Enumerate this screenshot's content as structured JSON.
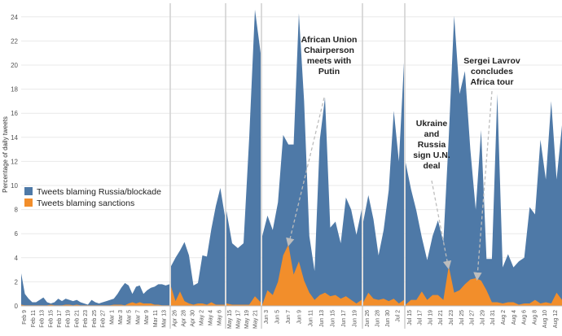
{
  "chart_data": {
    "type": "area",
    "ylabel": "Percentage of daily tweets",
    "ylim": [
      0,
      25
    ],
    "y_ticks": [
      0,
      2,
      4,
      6,
      8,
      10,
      12,
      14,
      16,
      18,
      20,
      22,
      24
    ],
    "grid": true,
    "legend_placement": "left-middle",
    "colors": {
      "blue": "#4e79a7",
      "orange": "#f28e2b",
      "divider": "#cfcfcf",
      "grid": "#e9e9e9",
      "annotation_arrow": "#bdbdbd"
    },
    "series": [
      {
        "name": "Tweets blaming Russia/blockade",
        "color": "#4e79a7"
      },
      {
        "name": "Tweets blaming sanctions",
        "color": "#f28e2b"
      }
    ],
    "panels": [
      {
        "ticks": [
          "Feb 9",
          "Feb 11",
          "Feb 13",
          "Feb 15",
          "Feb 17",
          "Feb 19",
          "Feb 21",
          "Feb 23",
          "Feb 25",
          "Feb 27",
          "Mar 1",
          "Mar 3",
          "Mar 5",
          "Mar 7",
          "Mar 9",
          "Mar 11",
          "Mar 13"
        ],
        "blue": [
          2.7,
          1.0,
          0.6,
          0.3,
          0.3,
          0.5,
          0.7,
          0.3,
          0.2,
          0.3,
          0.6,
          0.4,
          0.6,
          0.5,
          0.4,
          0.5,
          0.3,
          0.2,
          0.1,
          0.5,
          0.3,
          0.2,
          0.3,
          0.4,
          0.5,
          0.6,
          1.0,
          1.5,
          1.9,
          1.7,
          1.0,
          1.6,
          1.7,
          1.0,
          1.3,
          1.5,
          1.6,
          1.8,
          1.8,
          1.7,
          1.8
        ],
        "orange": [
          0.1,
          0.05,
          0.05,
          0.05,
          0.05,
          0.05,
          0.05,
          0.05,
          0.1,
          0.05,
          0.05,
          0.05,
          0.1,
          0.1,
          0.05,
          0.1,
          0.05,
          0.05,
          0.05,
          0.05,
          0.05,
          0.05,
          0.05,
          0.05,
          0.05,
          0.1,
          0.1,
          0.1,
          0.05,
          0.2,
          0.3,
          0.2,
          0.3,
          0.2,
          0.2,
          0.2,
          0.1,
          0.1,
          0.05,
          0.05,
          0.05
        ]
      },
      {
        "ticks": [
          "Apr 26",
          "Apr 28",
          "Apr 30",
          "May 2",
          "May 4",
          "May 6"
        ],
        "blue": [
          3.3,
          4.0,
          4.6,
          5.3,
          4.2,
          1.7,
          1.9,
          4.2,
          4.1,
          6.4,
          8.3,
          9.8,
          7.5
        ],
        "orange": [
          1.6,
          0.4,
          1.2,
          0.4,
          0.2,
          0.1,
          0.2,
          0.2,
          0.1,
          0.3,
          0.1,
          0.1,
          0.1
        ]
      },
      {
        "ticks": [
          "May 15",
          "May 17",
          "May 19",
          "May 21"
        ],
        "blue": [
          7.9,
          5.2,
          4.8,
          5.2,
          14.0,
          24.6,
          21.0
        ],
        "orange": [
          0.2,
          0.1,
          0.1,
          0.1,
          0.1,
          0.8,
          0.3
        ]
      },
      {
        "ticks": [
          "Jun 3",
          "Jun 5",
          "Jun 7",
          "Jun 9",
          "Jun 11",
          "Jun 13",
          "Jun 15",
          "Jun 17",
          "Jun 19"
        ],
        "blue": [
          5.8,
          7.5,
          6.3,
          8.6,
          14.2,
          13.4,
          13.4,
          24.3,
          17.0,
          5.8,
          2.9,
          13.8,
          17.3,
          6.5,
          7.0,
          5.2,
          9.0,
          8.0,
          5.9,
          8.0
        ],
        "orange": [
          0.1,
          1.3,
          0.9,
          2.0,
          4.2,
          5.1,
          2.6,
          3.7,
          2.1,
          1.1,
          0.5,
          0.9,
          1.1,
          0.8,
          0.9,
          0.6,
          0.8,
          0.5,
          0.2,
          0.5
        ]
      },
      {
        "ticks": [
          "Jun 26",
          "Jun 28",
          "Jun 30",
          "Jul 2"
        ],
        "blue": [
          7.0,
          9.2,
          7.2,
          4.2,
          6.3,
          9.6,
          16.2,
          12.0,
          20.2
        ],
        "orange": [
          0.3,
          1.1,
          0.6,
          0.5,
          0.6,
          0.4,
          0.6,
          0.2,
          0.5
        ]
      },
      {
        "ticks": [
          "Jul 15",
          "Jul 17",
          "Jul 19",
          "Jul 21",
          "Jul 23",
          "Jul 25",
          "Jul 27",
          "Jul 29",
          "Jul 31",
          "Aug 2",
          "Aug 4",
          "Aug 6",
          "Aug 8",
          "Aug 10",
          "Aug 12"
        ],
        "blue": [
          11.9,
          9.7,
          7.9,
          5.7,
          3.8,
          5.8,
          7.1,
          5.3,
          14.0,
          24.1,
          17.6,
          19.5,
          13.0,
          8.0,
          14.6,
          3.9,
          3.9,
          17.6,
          3.2,
          4.3,
          3.2,
          3.7,
          4.0,
          8.2,
          7.6,
          13.8,
          10.5,
          17.0,
          10.5,
          15.0
        ],
        "orange": [
          0.1,
          0.5,
          0.5,
          1.2,
          0.5,
          0.9,
          0.9,
          0.5,
          3.3,
          1.1,
          1.3,
          1.8,
          2.2,
          2.3,
          2.1,
          1.3,
          0.3,
          0.3,
          0.2,
          0.3,
          0.3,
          0.1,
          0.2,
          0.2,
          0.5,
          0.2,
          0.3,
          0.2,
          1.1,
          0.5
        ]
      }
    ],
    "annotations": [
      {
        "lines": [
          "African Union",
          "Chairperson",
          "meets with",
          "Putin"
        ]
      },
      {
        "lines": [
          "Sergei Lavrov",
          "concludes",
          "Africa tour"
        ]
      },
      {
        "lines": [
          "Ukraine",
          "and",
          "Russia",
          "sign U.N.",
          "deal"
        ]
      }
    ]
  }
}
